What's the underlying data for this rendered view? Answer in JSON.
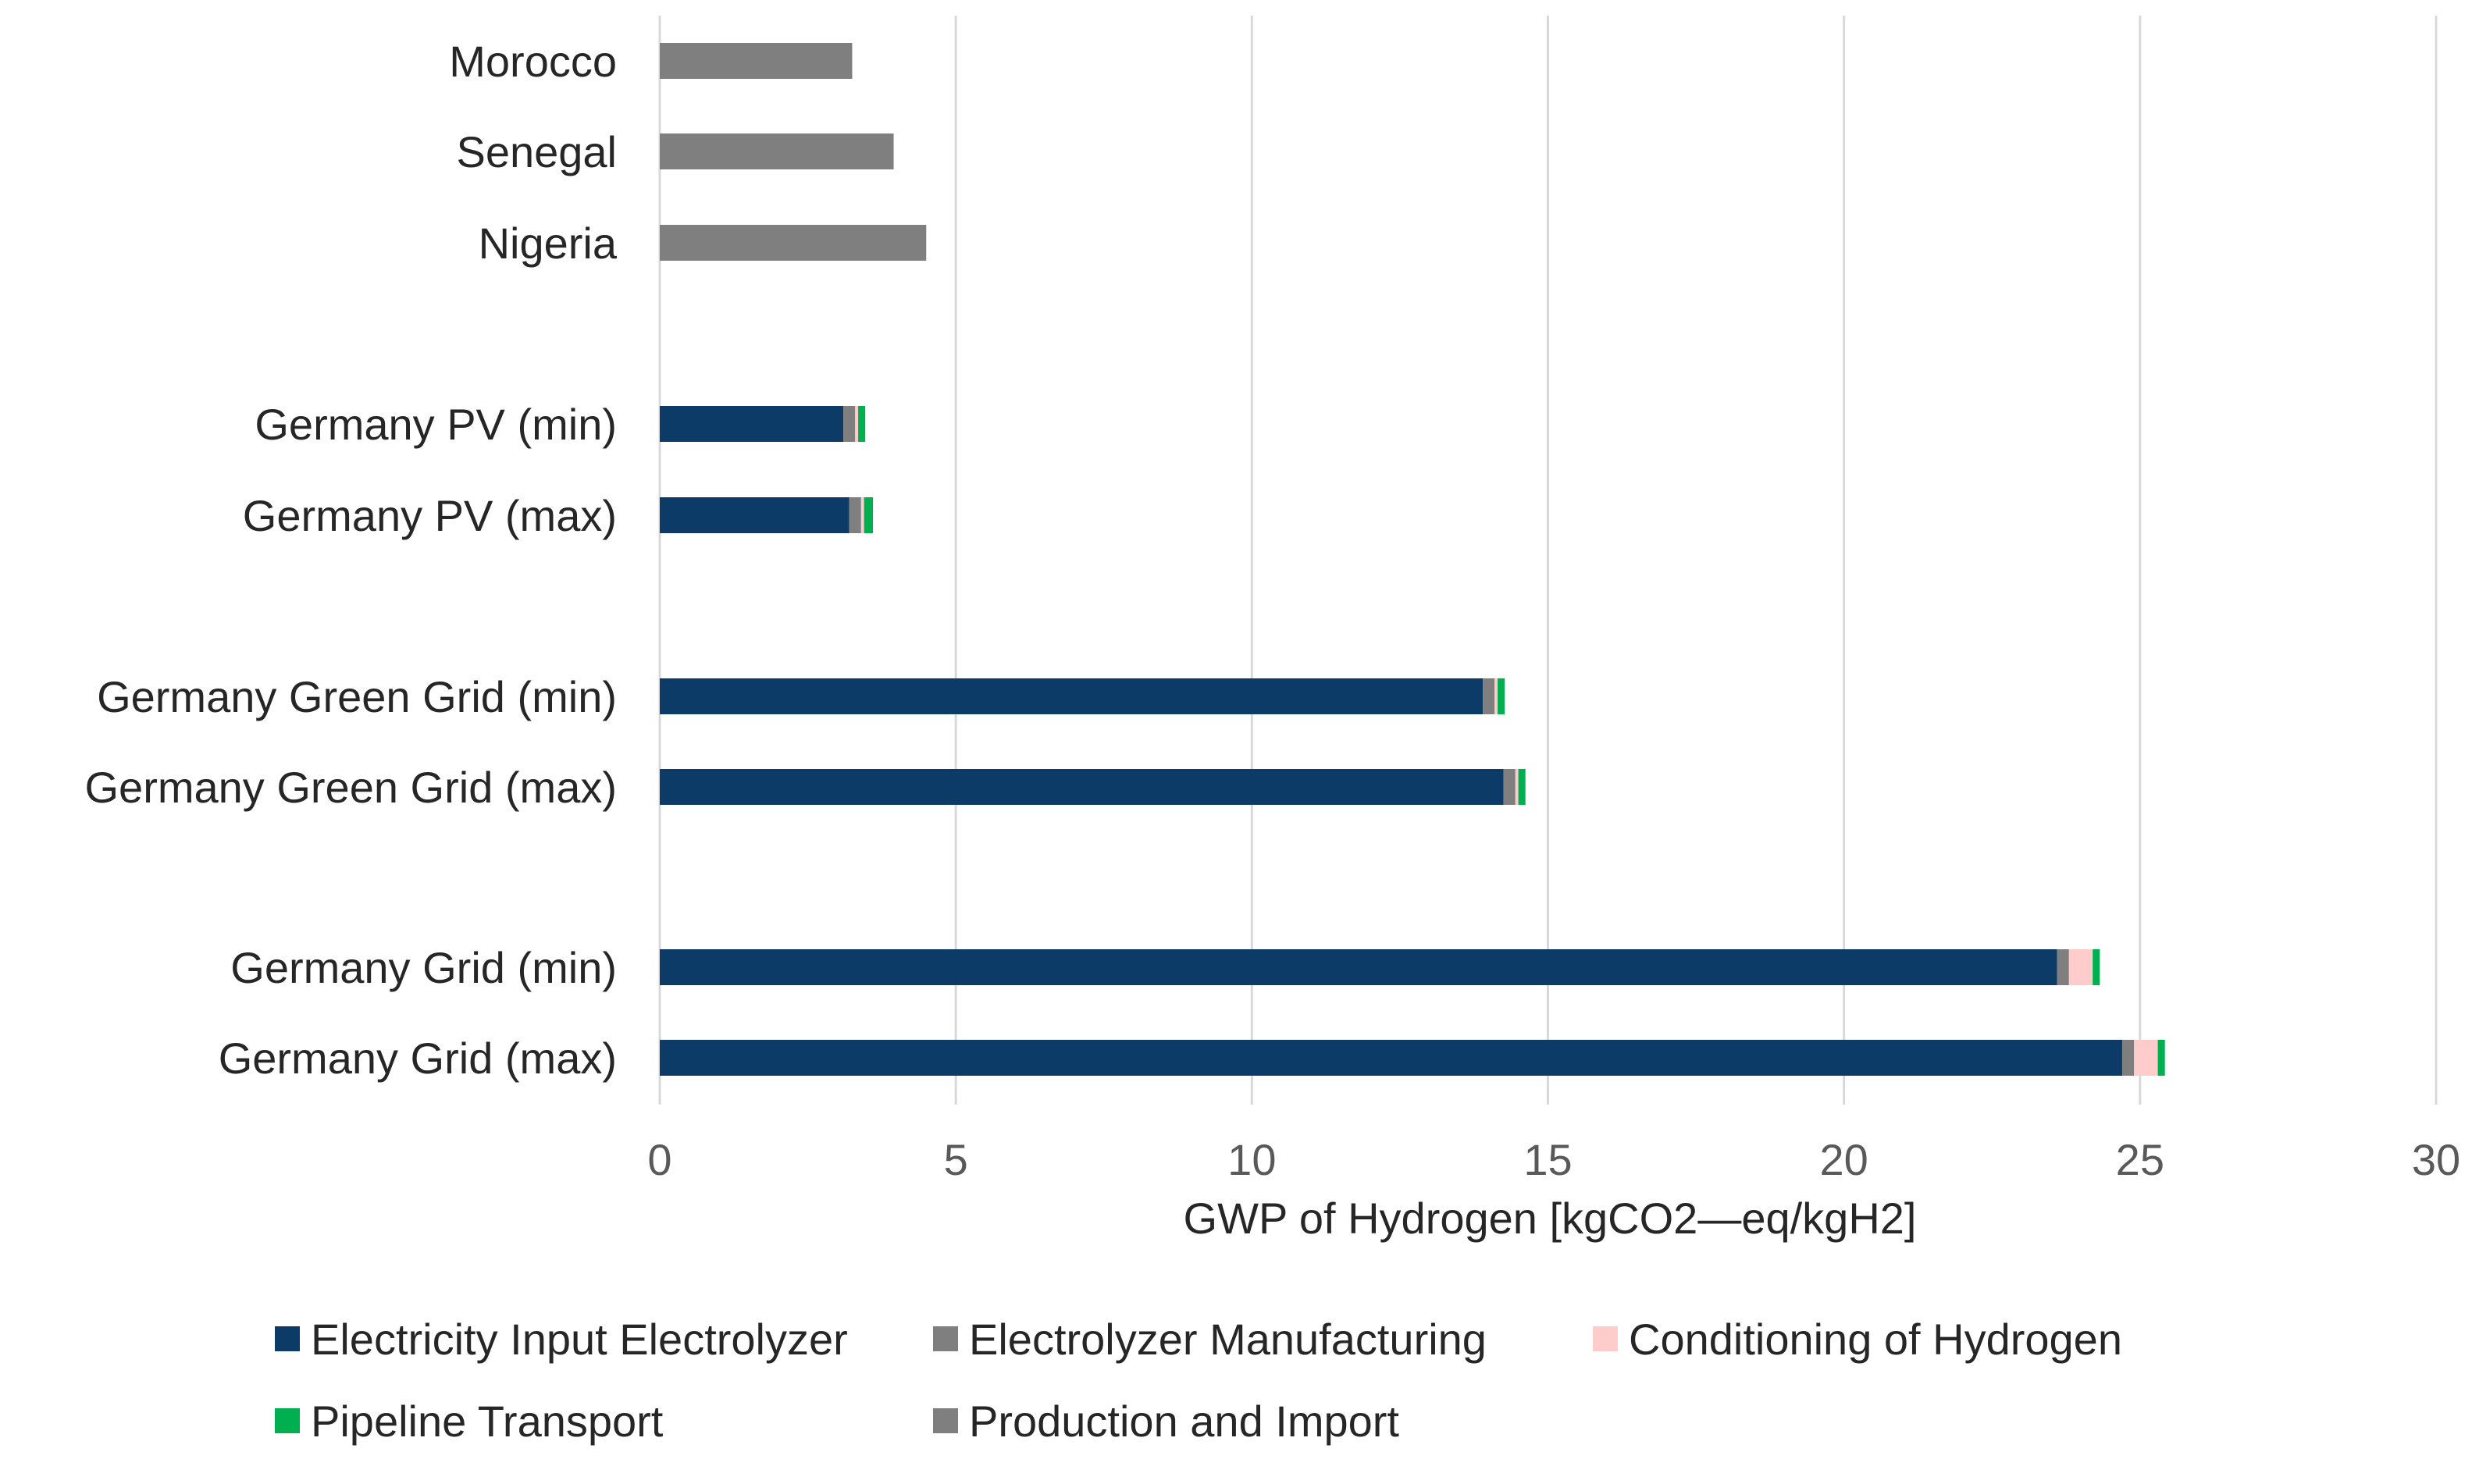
{
  "chart_data": {
    "type": "bar",
    "orientation": "horizontal",
    "stacked": true,
    "title": "",
    "xlabel": "GWP of Hydrogen [kgCO2—eq/kgH2]",
    "ylabel": "",
    "xlim": [
      0,
      30
    ],
    "xticks": [
      0,
      5,
      10,
      15,
      20,
      25,
      30
    ],
    "xtick_labels": [
      "0",
      "5",
      "10",
      "15",
      "20",
      "25",
      "30"
    ],
    "grid": "vertical",
    "legend_position": "bottom",
    "categories": [
      "Morocco",
      "Senegal",
      "Nigeria",
      "Germany PV (min)",
      "Germany PV (max)",
      "Germany Green Grid (min)",
      "Germany Green Grid (max)",
      "Germany Grid (min)",
      "Germany Grid (max)"
    ],
    "series": [
      {
        "name": "Electricity Input Electrolyzer",
        "color": "#0B3B66",
        "values": [
          0,
          0,
          0,
          3.1,
          3.2,
          13.9,
          14.25,
          23.6,
          24.7
        ]
      },
      {
        "name": "Electrolyzer Manufacturing",
        "color": "#7F7F7F",
        "values": [
          0,
          0,
          0,
          0.2,
          0.2,
          0.2,
          0.2,
          0.2,
          0.2
        ]
      },
      {
        "name": "Conditioning of Hydrogen",
        "color": "#FFCCCC",
        "values": [
          0,
          0,
          0,
          0.05,
          0.05,
          0.05,
          0.05,
          0.4,
          0.4
        ]
      },
      {
        "name": "Pipeline Transport",
        "color": "#00B050",
        "values": [
          0,
          0,
          0,
          0.12,
          0.15,
          0.12,
          0.12,
          0.12,
          0.12
        ]
      },
      {
        "name": "Production and Import",
        "color": "#7F7F7F",
        "values": [
          3.25,
          3.95,
          4.5,
          0,
          0,
          0,
          0,
          0,
          0
        ]
      }
    ]
  }
}
